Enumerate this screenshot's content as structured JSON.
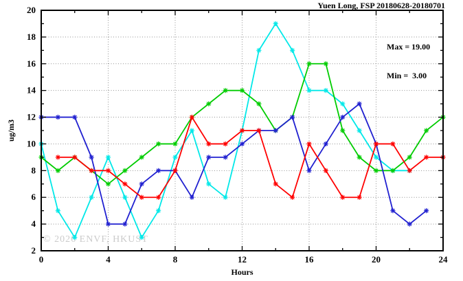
{
  "chart_data": {
    "type": "line",
    "title": "Yuen Long, FSP 20180628-20180701",
    "xlabel": "Hours",
    "ylabel": "ug/m3",
    "xlim": [
      0,
      24
    ],
    "ylim": [
      2,
      20
    ],
    "grid": true,
    "legend_position": "none",
    "x_major_ticks": [
      0,
      4,
      8,
      12,
      16,
      20,
      24
    ],
    "x_minor_ticks": [
      2,
      6,
      10,
      14,
      18,
      22
    ],
    "y_major_ticks": [
      2,
      4,
      6,
      8,
      10,
      12,
      14,
      16,
      18,
      20
    ],
    "y_minor_ticks": [
      3,
      5,
      7,
      9,
      11,
      13,
      15,
      17,
      19
    ],
    "annotations": {
      "max_label": "Max = 19.00",
      "min_label": "Min =  3.00"
    },
    "watermark": "© 2026 ENVF, HKUST",
    "x": [
      0,
      1,
      2,
      3,
      4,
      5,
      6,
      7,
      8,
      9,
      10,
      11,
      12,
      13,
      14,
      15,
      16,
      17,
      18,
      19,
      20,
      21,
      22,
      23,
      24
    ],
    "series": [
      {
        "name": "series-cyan",
        "color": "#00e8e8",
        "values": [
          10,
          5,
          3,
          6,
          9,
          6,
          3,
          5,
          9,
          11,
          7,
          6,
          11,
          17,
          19,
          17,
          14,
          14,
          13,
          11,
          9,
          8,
          8,
          null,
          null
        ]
      },
      {
        "name": "series-green",
        "color": "#00cc00",
        "values": [
          9,
          8,
          9,
          8,
          7,
          8,
          9,
          10,
          10,
          12,
          13,
          14,
          14,
          13,
          11,
          12,
          16,
          16,
          11,
          9,
          8,
          8,
          9,
          11,
          12
        ]
      },
      {
        "name": "series-blue",
        "color": "#2020d0",
        "values": [
          12,
          12,
          12,
          9,
          4,
          4,
          7,
          8,
          8,
          6,
          9,
          9,
          10,
          11,
          11,
          12,
          8,
          10,
          12,
          13,
          10,
          5,
          4,
          5,
          null
        ]
      },
      {
        "name": "series-red",
        "color": "#ff0000",
        "values": [
          null,
          9,
          9,
          8,
          8,
          7,
          6,
          6,
          8,
          12,
          10,
          10,
          11,
          11,
          7,
          6,
          10,
          8,
          6,
          6,
          10,
          10,
          8,
          9,
          9
        ]
      }
    ]
  },
  "colors": {
    "axis": "#000000",
    "grid": "#909090",
    "background": "#ffffff",
    "watermark": "#cbcbcb"
  }
}
